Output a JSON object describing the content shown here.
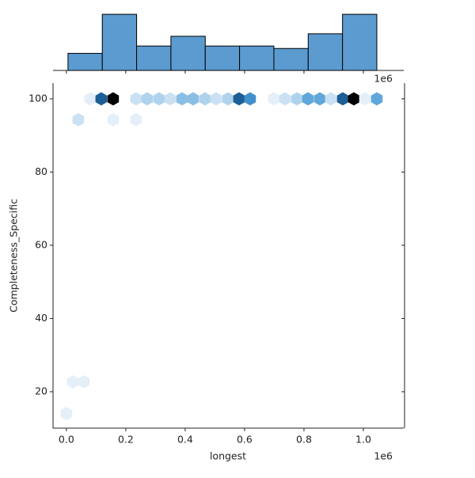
{
  "chart_data": {
    "type": "hexbin",
    "x_label": "longest",
    "y_label": "Completeness_Specific",
    "x_offset_label": "1e6",
    "xlim": [
      -45000,
      1136000
    ],
    "ylim": [
      10.05,
      104.3
    ],
    "xticks": [
      {
        "value": 0,
        "label": "0.0"
      },
      {
        "value": 200000,
        "label": "0.2"
      },
      {
        "value": 400000,
        "label": "0.4"
      },
      {
        "value": 600000,
        "label": "0.6"
      },
      {
        "value": 800000,
        "label": "0.8"
      },
      {
        "value": 1000000,
        "label": "1.0"
      }
    ],
    "yticks": [
      20,
      40,
      60,
      80,
      100
    ],
    "colormap": [
      "#e4eff9",
      "#a9cfec",
      "#4b9bd6",
      "#1f6aa8",
      "#000000"
    ],
    "hexes": {
      "x": [
        80000,
        117333,
        157333,
        234667,
        272000,
        312000,
        349333,
        389333,
        426667,
        466667,
        504000,
        544000,
        581333,
        618667,
        698667,
        736000,
        776000,
        813333,
        853333,
        890667,
        930667,
        968000,
        1005333,
        1045333,
        40000,
        157333,
        234667,
        21333,
        58667,
        0
      ],
      "y": [
        100,
        100,
        100,
        100,
        100,
        100,
        100,
        100,
        100,
        100,
        100,
        100,
        100,
        100,
        100,
        100,
        100,
        100,
        100,
        100,
        100,
        100,
        100,
        100,
        94.3,
        94.3,
        94.3,
        22.7,
        22.7,
        14
      ],
      "counts": [
        1,
        8,
        10,
        2,
        3,
        3,
        2,
        4,
        4,
        3,
        2,
        3,
        8,
        6,
        1,
        2,
        3,
        5,
        5,
        2,
        8,
        10,
        1,
        5,
        2,
        1,
        1,
        1,
        1,
        1
      ]
    },
    "x_histogram": {
      "color": "#5b9bd0",
      "bins": [
        5333,
        120889,
        236444,
        352000,
        467556,
        583111,
        698667,
        814222,
        929778,
        1045333
      ],
      "counts": [
        7,
        23,
        10,
        14,
        10,
        10,
        9,
        15,
        23
      ],
      "ylim": [
        0,
        24
      ]
    }
  }
}
